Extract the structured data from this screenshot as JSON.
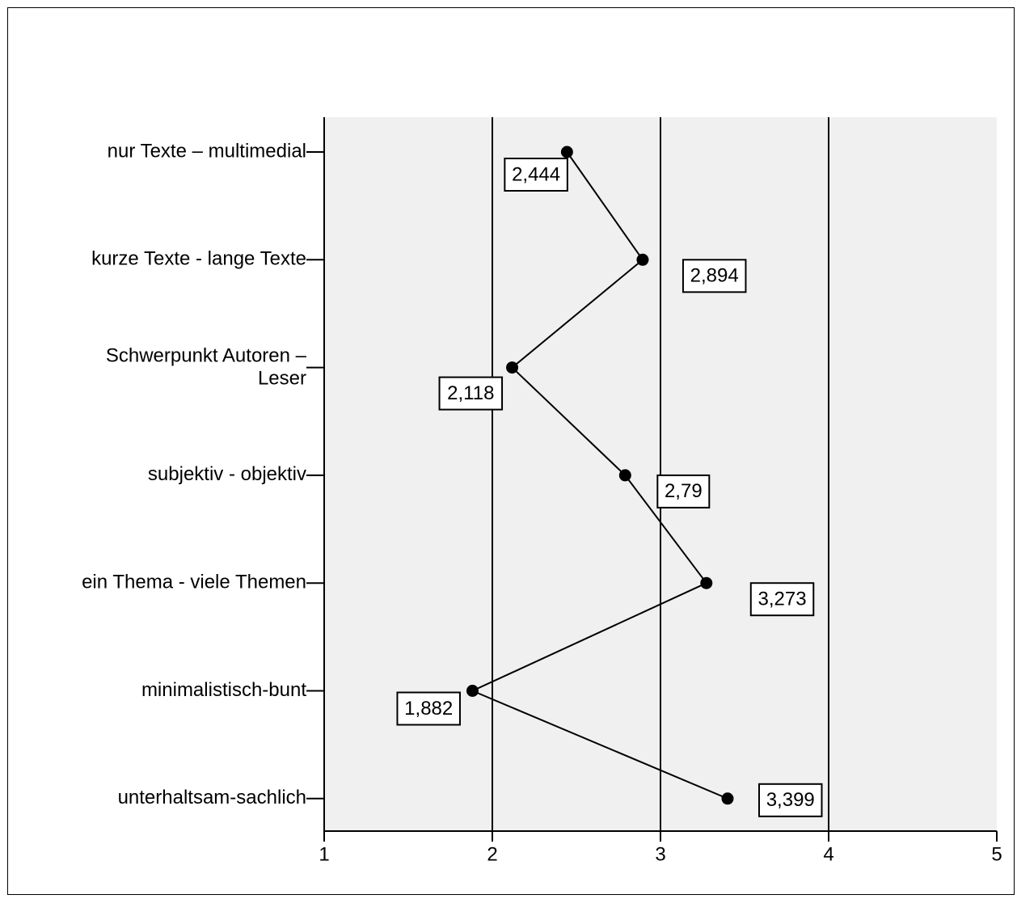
{
  "chart_data": {
    "type": "line",
    "orientation": "horizontal",
    "title": "",
    "xlabel": "",
    "ylabel": "",
    "xlim": [
      1,
      5
    ],
    "x_ticks": [
      "1",
      "2",
      "3",
      "4",
      "5"
    ],
    "gridlines_at": [
      2,
      3,
      4
    ],
    "grid": true,
    "legend": "none",
    "categories": [
      "nur Texte – multimedial",
      "kurze Texte - lange Texte",
      "Schwerpunkt Autoren – Leser",
      "subjektiv - objektiv",
      "ein Thema - viele Themen",
      "minimalistisch-bunt",
      "unterhaltsam-sachlich"
    ],
    "category_lines": [
      [
        "nur Texte – multimedial"
      ],
      [
        "kurze Texte - lange Texte"
      ],
      [
        "Schwerpunkt Autoren –",
        "Leser"
      ],
      [
        "subjektiv - objektiv"
      ],
      [
        "ein Thema - viele Themen"
      ],
      [
        "minimalistisch-bunt"
      ],
      [
        "unterhaltsam-sachlich"
      ]
    ],
    "values": [
      2.444,
      2.894,
      2.118,
      2.79,
      3.273,
      1.882,
      3.399
    ],
    "data_labels": [
      "2,444",
      "2,894",
      "2,118",
      "2,79",
      "3,273",
      "1,882",
      "3,399"
    ],
    "colors": {
      "plot_background": "#f0f0f0",
      "line": "#000000",
      "marker": "#000000",
      "label_box": "#ffffff"
    }
  }
}
